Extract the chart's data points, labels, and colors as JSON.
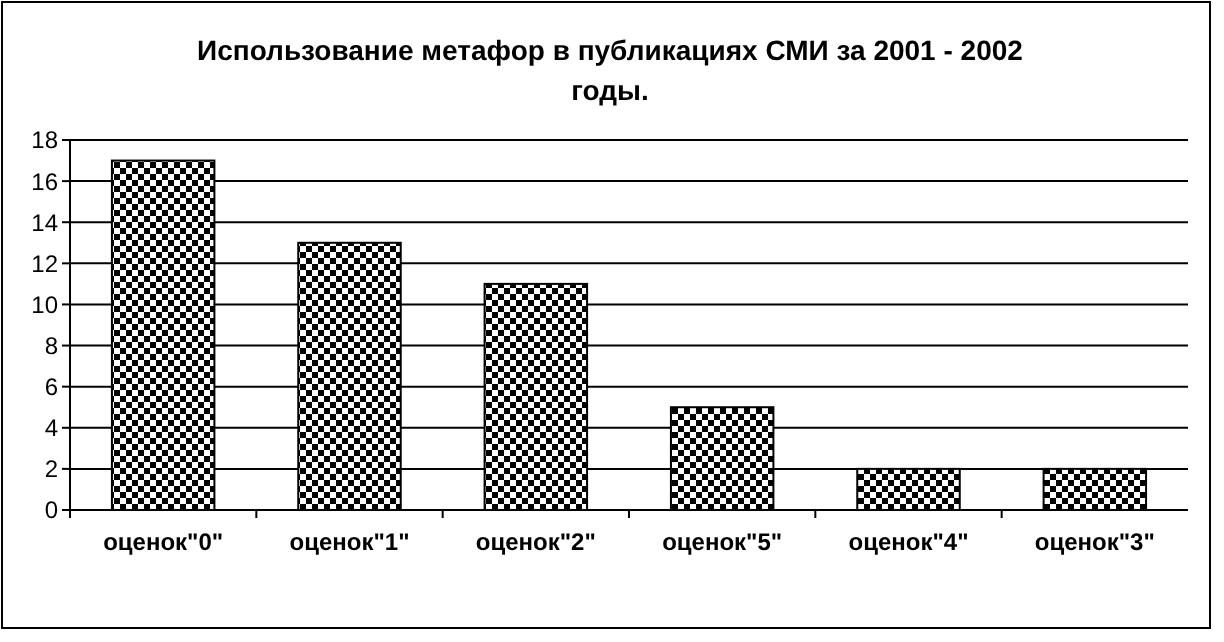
{
  "chart_data": {
    "type": "bar",
    "title": "Использование метафор в публикациях СМИ за 2001 - 2002 годы.",
    "categories": [
      "оценок\"0\"",
      "оценок\"1\"",
      "оценок\"2\"",
      "оценок\"5\"",
      "оценок\"4\"",
      "оценок\"3\""
    ],
    "values": [
      17,
      13,
      11,
      5,
      2,
      2
    ],
    "color": "#000000",
    "ylim": [
      0,
      18
    ],
    "yticks": [
      0,
      2,
      4,
      6,
      8,
      10,
      12,
      14,
      16,
      18
    ],
    "grid": "y"
  }
}
